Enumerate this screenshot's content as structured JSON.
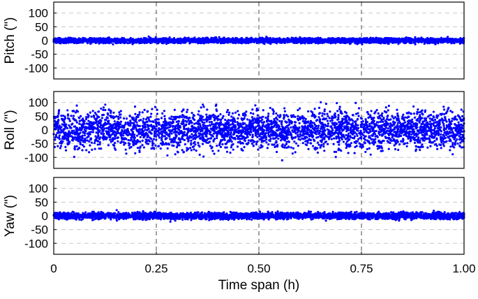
{
  "chart_data": [
    {
      "type": "scatter",
      "ylabel": "Pitch (\")",
      "ylim": [
        -140,
        140
      ],
      "yticks": [
        100,
        50,
        0,
        -50,
        -100
      ],
      "ytick_labels": [
        "100",
        "50",
        "0",
        "-50",
        "-100"
      ],
      "xlim": [
        0,
        1
      ],
      "grid": true,
      "series": [
        {
          "color": "#0000ff",
          "point_count": 3600,
          "x_range": [
            0,
            1
          ],
          "y_band": [
            -10,
            10
          ],
          "y_outlier_range": [
            -20,
            18
          ]
        }
      ]
    },
    {
      "type": "scatter",
      "ylabel": "Roll (\")",
      "ylim": [
        -140,
        140
      ],
      "yticks": [
        100,
        50,
        0,
        -50,
        -100
      ],
      "ytick_labels": [
        "100",
        "50",
        "0",
        "-50",
        "-100"
      ],
      "xlim": [
        0,
        1
      ],
      "grid": true,
      "series": [
        {
          "color": "#0000ff",
          "point_count": 3600,
          "x_range": [
            0,
            1
          ],
          "y_band": [
            -75,
            75
          ],
          "y_outlier_range": [
            -115,
            125
          ]
        }
      ]
    },
    {
      "type": "scatter",
      "ylabel": "Yaw (\")",
      "ylim": [
        -140,
        140
      ],
      "yticks": [
        100,
        50,
        0,
        -50,
        -100
      ],
      "ytick_labels": [
        "100",
        "50",
        "0",
        "-50",
        "-100"
      ],
      "xlim": [
        0,
        1
      ],
      "xticks": [
        0,
        0.25,
        0.5,
        0.75,
        1.0
      ],
      "xtick_labels": [
        "0",
        "0.25",
        "0.50",
        "0.75",
        "1.00"
      ],
      "xlabel": "Time span (h)",
      "grid": true,
      "series": [
        {
          "color": "#0000ff",
          "point_count": 3600,
          "x_range": [
            0,
            1
          ],
          "y_band": [
            -13,
            13
          ],
          "y_outlier_range": [
            -22,
            22
          ]
        }
      ]
    }
  ]
}
